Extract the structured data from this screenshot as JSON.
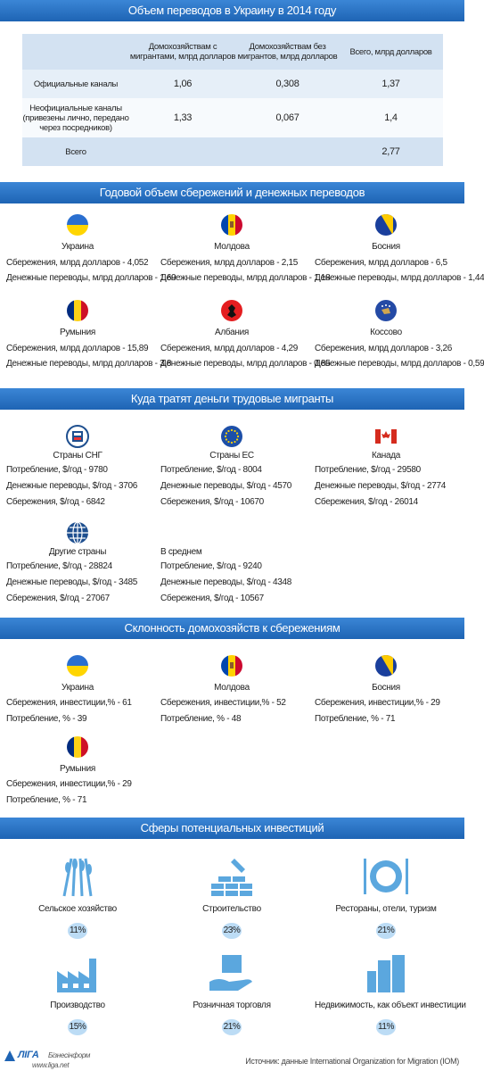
{
  "transfers_table": {
    "title": "Объем переводов в Украину в 2014 году",
    "columns": [
      null,
      "Домохозяйствам с мигрантами, млрд долларов",
      "Домохозяйствам без мигрантов, млрд долларов",
      "Всего, млрд долларов"
    ],
    "rows": [
      [
        "Официальные каналы",
        "1,06",
        "0,308",
        "1,37"
      ],
      [
        "Неофициальные каналы (привезены лично, передано через посредников)",
        "1,33",
        "0,067",
        "1,4"
      ],
      [
        "Всего",
        null,
        null,
        "2,77"
      ]
    ]
  },
  "savings": {
    "title": "Годовой объем сбережений и денежных переводов",
    "countries": [
      {
        "name": "Украина",
        "lines": [
          "Сбережения, млрд долларов - 4,052",
          "Денежные переводы, млрд долларов - 1,69"
        ]
      },
      {
        "name": "Молдова",
        "lines": [
          "Сбережения, млрд долларов - 2,15",
          "Денежные переводы, млрд долларов - 1,18"
        ]
      },
      {
        "name": "Босния",
        "lines": [
          "Сбережения, млрд долларов - 6,5",
          "Денежные переводы, млрд долларов - 1,44"
        ]
      },
      {
        "name": "Румыния",
        "lines": [
          "Сбережения, млрд долларов - 15,89",
          "Денежные переводы, млрд долларов - 3,8"
        ]
      },
      {
        "name": "Албания",
        "lines": [
          "Сбережения, млрд долларов - 4,29",
          "Денежные переводы, млрд долларов - 0,85"
        ]
      },
      {
        "name": "Коссово",
        "lines": [
          "Сбережения, млрд долларов - 3,26",
          "Денежные переводы, млрд долларов - 0,59"
        ]
      }
    ]
  },
  "spending": {
    "title": "Куда тратят деньги трудовые мигранты",
    "groups": [
      {
        "name": "Страны СНГ",
        "lines": [
          "Потребление, $/год - 9780",
          "Денежные переводы, $/год - 3706",
          "Сбережения, $/год - 6842"
        ]
      },
      {
        "name": "Страны ЕС",
        "lines": [
          "Потребление, $/год - 8004",
          "Денежные переводы, $/год - 4570",
          "Сбережения, $/год - 10670"
        ]
      },
      {
        "name": "Канада",
        "lines": [
          "Потребление, $/год - 29580",
          "Денежные переводы, $/год - 2774",
          "Сбережения, $/год - 26014"
        ]
      },
      {
        "name": "Другие страны",
        "lines": [
          "Потребление, $/год - 28824",
          "Денежные переводы, $/год - 3485",
          "Сбережения, $/год - 27067"
        ]
      },
      {
        "name": "В среднем",
        "lines": [
          "Потребление, $/год - 9240",
          "Денежные переводы, $/год - 4348",
          "Сбережения, $/год - 10567"
        ]
      }
    ]
  },
  "propensity": {
    "title": "Склонность домохозяйств к сбережениям",
    "countries": [
      {
        "name": "Украина",
        "lines": [
          "Сбережения, инвестиции,% - 61",
          "Потребление, % - 39"
        ]
      },
      {
        "name": "Молдова",
        "lines": [
          "Сбережения, инвестиции,% - 52",
          "Потребление, % - 48"
        ]
      },
      {
        "name": "Босния",
        "lines": [
          "Сбережения, инвестиции,% - 29",
          "Потребление, % - 71"
        ]
      },
      {
        "name": "Румыния",
        "lines": [
          "Сбережения, инвестиции,% - 29",
          "Потребление, % - 71"
        ]
      }
    ]
  },
  "investments": {
    "title": "Сферы потенциальных инвестиций",
    "items": [
      {
        "label": "Сельское хозяйство",
        "share": "11%"
      },
      {
        "label": "Строительство",
        "share": "23%"
      },
      {
        "label": "Рестораны, отели, туризм",
        "share": "21%"
      },
      {
        "label": "Производство",
        "share": "15%"
      },
      {
        "label": "Розничная торговля",
        "share": "21%"
      },
      {
        "label": "Недвижимость, как объект инвестиции",
        "share": "11%"
      }
    ]
  },
  "footer": {
    "logo": "ЛІГА",
    "brand": "Бізнесінформ",
    "site": "www.liga.net",
    "source": "Источник: данные International Organization for Migration (IOM)"
  }
}
